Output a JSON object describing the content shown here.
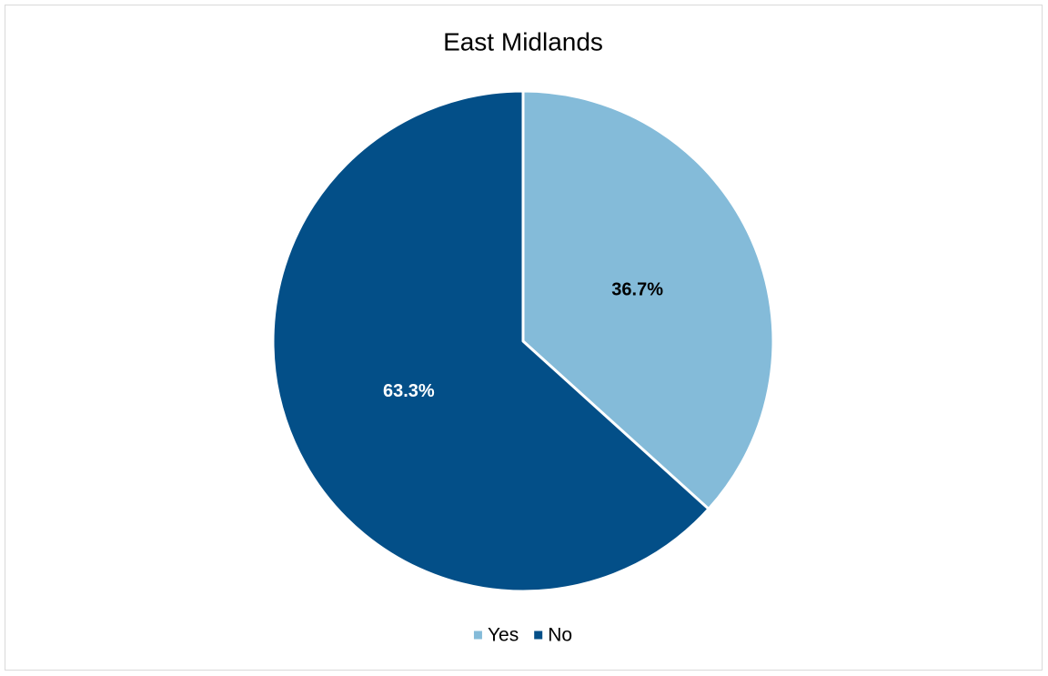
{
  "chart_data": {
    "type": "pie",
    "title": "East Midlands",
    "categories": [
      "Yes",
      "No"
    ],
    "values": [
      36.7,
      63.3
    ],
    "value_labels": [
      "36.7%",
      "63.3%"
    ],
    "colors": [
      "#84bbd9",
      "#034f88"
    ],
    "legend": "bottom"
  }
}
